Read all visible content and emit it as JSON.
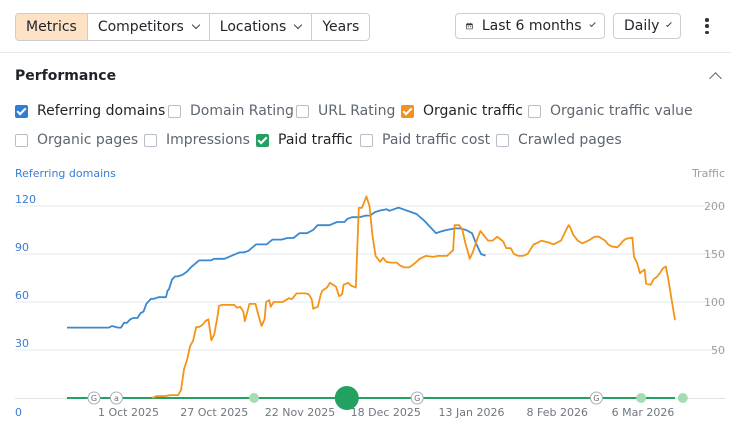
{
  "toolbar": {
    "tabs": [
      {
        "label": "Metrics"
      },
      {
        "label": "Competitors"
      },
      {
        "label": "Locations"
      },
      {
        "label": "Years"
      }
    ],
    "date_range": "Last 6 months",
    "interval": "Daily"
  },
  "panel": {
    "title": "Performance",
    "checkboxes": [
      {
        "label": "Referring domains",
        "checked": true,
        "color": "#2e7fd1"
      },
      {
        "label": "Domain Rating",
        "checked": false
      },
      {
        "label": "URL Rating",
        "checked": false
      },
      {
        "label": "Organic traffic",
        "checked": true,
        "color": "#f5901e"
      },
      {
        "label": "Organic traffic value",
        "checked": false
      },
      {
        "label": "Organic pages",
        "checked": false
      },
      {
        "label": "Impressions",
        "checked": false
      },
      {
        "label": "Paid traffic",
        "checked": true,
        "color": "#22a061"
      },
      {
        "label": "Paid traffic cost",
        "checked": false
      },
      {
        "label": "Crawled pages",
        "checked": false
      }
    ]
  },
  "chart_data": {
    "type": "line",
    "left_axis_title": "Referring domains",
    "right_axis_title": "Traffic",
    "left_ticks": [
      "0",
      "30",
      "60",
      "90",
      "120"
    ],
    "right_ticks": [
      "50",
      "100",
      "150",
      "200"
    ],
    "x_ticks": [
      "1 Oct 2025",
      "27 Oct 2025",
      "22 Nov 2025",
      "18 Dec 2025",
      "13 Jan 2026",
      "8 Feb 2026",
      "6 Mar 2026"
    ],
    "x_tick_days": [
      21,
      47,
      73,
      99,
      125,
      151,
      177
    ],
    "left_ylim": [
      0,
      120
    ],
    "right_ylim": [
      0,
      200
    ],
    "xlim_days": [
      0,
      177
    ],
    "grid": true,
    "colors": {
      "referring_domains": "#3a88cf",
      "organic_traffic": "#f39419",
      "paid_traffic": "#23a160"
    },
    "series": [
      {
        "name": "Referring domains",
        "axis": "left",
        "points": [
          [
            0,
            44
          ],
          [
            28,
            44
          ],
          [
            30,
            45
          ],
          [
            34,
            44
          ],
          [
            36,
            44
          ],
          [
            38,
            47
          ],
          [
            40,
            47
          ],
          [
            42,
            49
          ],
          [
            44,
            50
          ],
          [
            47,
            50
          ],
          [
            49,
            53
          ],
          [
            51,
            54
          ],
          [
            53,
            59
          ],
          [
            56,
            62
          ],
          [
            58,
            62
          ],
          [
            61,
            63
          ],
          [
            66,
            63
          ],
          [
            67,
            67
          ],
          [
            68,
            68
          ],
          [
            70,
            74
          ],
          [
            72,
            76
          ],
          [
            74,
            76
          ],
          [
            77,
            77
          ],
          [
            80,
            79
          ],
          [
            83,
            82
          ],
          [
            88,
            86
          ],
          [
            96,
            86
          ],
          [
            98,
            87
          ],
          [
            105,
            87
          ],
          [
            110,
            89
          ],
          [
            115,
            91
          ],
          [
            118,
            91
          ],
          [
            121,
            92
          ],
          [
            126,
            96
          ],
          [
            133,
            96
          ],
          [
            137,
            99
          ],
          [
            143,
            99
          ],
          [
            147,
            100
          ],
          [
            151,
            100
          ],
          [
            155,
            103
          ],
          [
            160,
            103
          ],
          [
            164,
            105
          ],
          [
            167,
            108
          ],
          [
            175,
            108
          ],
          [
            180,
            110
          ],
          [
            185,
            110
          ],
          [
            187,
            112
          ],
          [
            190,
            113
          ],
          [
            195,
            113
          ],
          [
            199,
            114
          ],
          [
            202,
            114
          ],
          [
            205,
            116
          ],
          [
            208,
            117
          ],
          [
            213,
            118
          ],
          [
            215,
            117
          ],
          [
            218,
            118
          ],
          [
            221,
            119
          ],
          [
            224,
            118
          ],
          [
            227,
            117
          ],
          [
            230,
            116
          ],
          [
            233,
            115
          ],
          [
            238,
            111
          ],
          [
            240,
            109
          ],
          [
            243,
            106
          ],
          [
            246,
            103
          ],
          [
            249,
            104
          ],
          [
            253,
            105
          ],
          [
            259,
            106
          ],
          [
            262,
            106
          ],
          [
            266,
            105
          ],
          [
            270,
            103
          ],
          [
            273,
            96
          ],
          [
            276,
            90
          ],
          [
            279,
            89
          ]
        ]
      },
      {
        "name": "Organic traffic",
        "axis": "right",
        "points": [
          [
            56,
            0
          ],
          [
            59,
            2
          ],
          [
            64,
            2
          ],
          [
            68,
            3
          ],
          [
            73,
            3
          ],
          [
            75,
            8
          ],
          [
            77,
            30
          ],
          [
            79,
            40
          ],
          [
            81,
            54
          ],
          [
            83,
            60
          ],
          [
            85,
            74
          ],
          [
            87,
            74
          ],
          [
            89,
            76
          ],
          [
            91,
            80
          ],
          [
            93,
            82
          ],
          [
            95,
            60
          ],
          [
            97,
            67
          ],
          [
            99,
            85
          ],
          [
            100,
            96
          ],
          [
            102,
            97
          ],
          [
            110,
            97
          ],
          [
            112,
            94
          ],
          [
            114,
            95
          ],
          [
            116,
            90
          ],
          [
            117,
            80
          ],
          [
            119,
            92
          ],
          [
            120,
            98
          ],
          [
            124,
            98
          ],
          [
            126,
            86
          ],
          [
            128,
            75
          ],
          [
            130,
            82
          ],
          [
            131,
            100
          ],
          [
            133,
            102
          ],
          [
            134,
            95
          ],
          [
            136,
            100
          ],
          [
            142,
            100
          ],
          [
            146,
            104
          ],
          [
            148,
            103
          ],
          [
            151,
            109
          ],
          [
            157,
            109
          ],
          [
            159,
            108
          ],
          [
            161,
            103
          ],
          [
            162,
            93
          ],
          [
            165,
            95
          ],
          [
            167,
            108
          ],
          [
            168,
            112
          ],
          [
            171,
            115
          ],
          [
            173,
            120
          ],
          [
            175,
            118
          ],
          [
            177,
            116
          ],
          [
            179,
            106
          ],
          [
            181,
            108
          ],
          [
            182,
            118
          ],
          [
            185,
            120
          ],
          [
            187,
            117
          ],
          [
            190,
            115
          ],
          [
            192,
            198
          ],
          [
            194,
            198
          ],
          [
            197,
            210
          ],
          [
            199,
            200
          ],
          [
            201,
            169
          ],
          [
            203,
            148
          ],
          [
            206,
            142
          ],
          [
            208,
            146
          ],
          [
            210,
            142
          ],
          [
            213,
            141
          ],
          [
            217,
            141
          ],
          [
            219,
            138
          ],
          [
            222,
            136
          ],
          [
            225,
            136
          ],
          [
            227,
            138
          ],
          [
            230,
            142
          ],
          [
            232,
            145
          ],
          [
            236,
            148
          ],
          [
            241,
            147
          ],
          [
            244,
            148
          ],
          [
            247,
            148
          ],
          [
            250,
            148
          ],
          [
            254,
            154
          ],
          [
            255,
            180
          ],
          [
            258,
            180
          ],
          [
            260,
            176
          ],
          [
            262,
            162
          ],
          [
            265,
            145
          ],
          [
            267,
            152
          ],
          [
            270,
            166
          ],
          [
            272,
            174
          ],
          [
            275,
            168
          ],
          [
            277,
            164
          ],
          [
            280,
            164
          ],
          [
            283,
            168
          ],
          [
            287,
            163
          ],
          [
            289,
            156
          ],
          [
            292,
            156
          ],
          [
            294,
            150
          ],
          [
            297,
            148
          ],
          [
            300,
            148
          ],
          [
            303,
            150
          ],
          [
            305,
            155
          ],
          [
            307,
            160
          ],
          [
            310,
            162
          ],
          [
            312,
            164
          ],
          [
            317,
            162
          ],
          [
            320,
            160
          ],
          [
            325,
            164
          ],
          [
            328,
            174
          ],
          [
            330,
            180
          ],
          [
            331,
            178
          ],
          [
            333,
            170
          ],
          [
            336,
            164
          ],
          [
            339,
            161
          ],
          [
            343,
            164
          ],
          [
            347,
            168
          ],
          [
            350,
            168
          ],
          [
            354,
            164
          ],
          [
            356,
            160
          ],
          [
            358,
            158
          ],
          [
            362,
            157
          ],
          [
            364,
            160
          ],
          [
            366,
            164
          ],
          [
            368,
            166
          ],
          [
            372,
            167
          ],
          [
            373,
            147
          ],
          [
            375,
            141
          ],
          [
            377,
            130
          ],
          [
            380,
            134
          ],
          [
            381,
            119
          ],
          [
            384,
            118
          ],
          [
            386,
            124
          ],
          [
            388,
            126
          ],
          [
            390,
            130
          ],
          [
            392,
            135
          ],
          [
            394,
            137
          ],
          [
            396,
            120
          ],
          [
            398,
            100
          ],
          [
            400,
            81
          ]
        ]
      }
    ],
    "paid_traffic_line_value": 0,
    "annotations": [
      {
        "day": 5,
        "kind": "letter",
        "text": "G"
      },
      {
        "day": 12,
        "kind": "letter",
        "text": "a"
      },
      {
        "day": 55,
        "kind": "dot",
        "size": "small"
      },
      {
        "day": 84,
        "kind": "dot",
        "size": "large"
      },
      {
        "day": 106,
        "kind": "letter",
        "text": "G"
      },
      {
        "day": 162,
        "kind": "letter",
        "text": "G"
      },
      {
        "day": 176,
        "kind": "dot",
        "size": "small"
      },
      {
        "day": 189,
        "kind": "dot",
        "size": "small"
      }
    ]
  }
}
